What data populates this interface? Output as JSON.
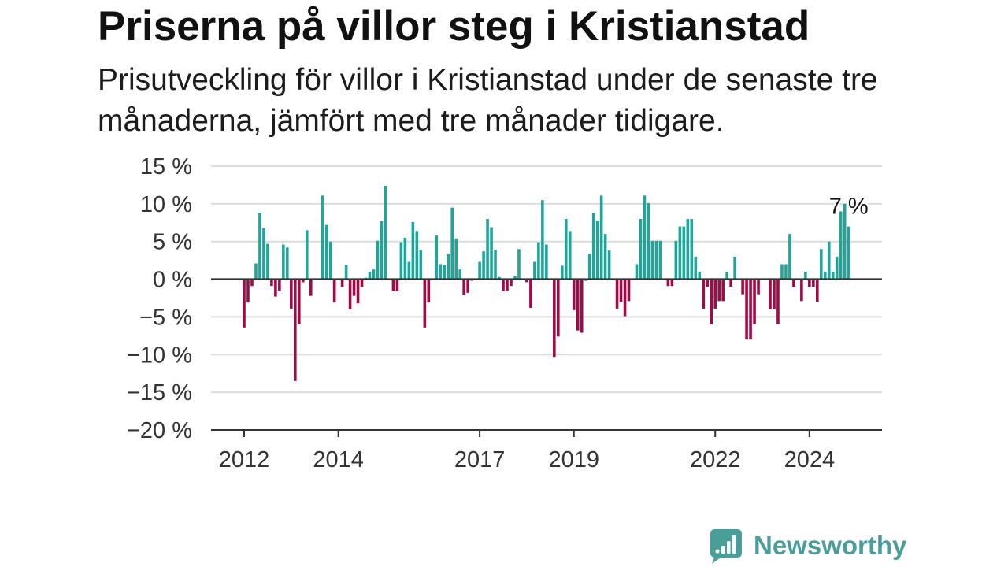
{
  "chart_data": {
    "type": "bar",
    "title": "Priserna på villor steg i Kristianstad",
    "subtitle": "Prisutveckling för villor i Kristianstad under de senaste tre månaderna, jämfört med tre månader tidigare.",
    "ylim": [
      -20,
      15
    ],
    "grid": true,
    "y_ticks": [
      {
        "value": 15,
        "label": "15 %"
      },
      {
        "value": 10,
        "label": "10 %"
      },
      {
        "value": 5,
        "label": "5 %"
      },
      {
        "value": 0,
        "label": "0 %"
      },
      {
        "value": -5,
        "label": "−5 %"
      },
      {
        "value": -10,
        "label": "−10 %"
      },
      {
        "value": -15,
        "label": "−15 %"
      },
      {
        "value": -20,
        "label": "−20 %"
      }
    ],
    "x_ticks": [
      "2012",
      "2014",
      "2017",
      "2019",
      "2022",
      "2024"
    ],
    "x": [
      "2012-01",
      "2012-02",
      "2012-03",
      "2012-04",
      "2012-05",
      "2012-06",
      "2012-07",
      "2012-08",
      "2012-09",
      "2012-10",
      "2012-11",
      "2012-12",
      "2013-01",
      "2013-02",
      "2013-03",
      "2013-04",
      "2013-05",
      "2013-06",
      "2013-07",
      "2013-08",
      "2013-09",
      "2013-10",
      "2013-11",
      "2013-12",
      "2014-01",
      "2014-02",
      "2014-03",
      "2014-04",
      "2014-05",
      "2014-06",
      "2014-07",
      "2014-08",
      "2014-09",
      "2014-10",
      "2014-11",
      "2014-12",
      "2015-01",
      "2015-02",
      "2015-03",
      "2015-04",
      "2015-05",
      "2015-06",
      "2015-07",
      "2015-08",
      "2015-09",
      "2015-10",
      "2015-11",
      "2015-12",
      "2016-01",
      "2016-02",
      "2016-03",
      "2016-04",
      "2016-05",
      "2016-06",
      "2016-07",
      "2016-08",
      "2016-09",
      "2016-10",
      "2016-11",
      "2016-12",
      "2017-01",
      "2017-02",
      "2017-03",
      "2017-04",
      "2017-05",
      "2017-06",
      "2017-07",
      "2017-08",
      "2017-09",
      "2017-10",
      "2017-11",
      "2017-12",
      "2018-01",
      "2018-02",
      "2018-03",
      "2018-04",
      "2018-05",
      "2018-06",
      "2018-07",
      "2018-08",
      "2018-09",
      "2018-10",
      "2018-11",
      "2018-12",
      "2019-01",
      "2019-02",
      "2019-03",
      "2019-04",
      "2019-05",
      "2019-06",
      "2019-07",
      "2019-08",
      "2019-09",
      "2019-10",
      "2019-11",
      "2019-12",
      "2020-01",
      "2020-02",
      "2020-03",
      "2020-04",
      "2020-05",
      "2020-06",
      "2020-07",
      "2020-08",
      "2020-09",
      "2020-10",
      "2020-11",
      "2020-12",
      "2021-01",
      "2021-02",
      "2021-03",
      "2021-04",
      "2021-05",
      "2021-06",
      "2021-07",
      "2021-08",
      "2021-09",
      "2021-10",
      "2021-11",
      "2021-12",
      "2022-01",
      "2022-02",
      "2022-03",
      "2022-04",
      "2022-05",
      "2022-06",
      "2022-07",
      "2022-08",
      "2022-09",
      "2022-10",
      "2022-11",
      "2022-12",
      "2023-01",
      "2023-02",
      "2023-03",
      "2023-04",
      "2023-05",
      "2023-06",
      "2023-07",
      "2023-08",
      "2023-09",
      "2023-10",
      "2023-11",
      "2023-12",
      "2024-01",
      "2024-02",
      "2024-03",
      "2024-04",
      "2024-05",
      "2024-06",
      "2024-07",
      "2024-08",
      "2024-09",
      "2024-10",
      "2024-11"
    ],
    "values": [
      -6.4,
      -3.1,
      -0.9,
      2.1,
      8.8,
      6.8,
      4.7,
      -0.9,
      -2.3,
      -1.5,
      4.6,
      4.2,
      -3.9,
      -13.5,
      -6.0,
      -0.4,
      6.5,
      -2.2,
      0,
      0,
      11.1,
      7.2,
      5.0,
      -3.1,
      0,
      -1.0,
      1.9,
      -4.0,
      -2.2,
      -3.2,
      -1.0,
      0.2,
      1.0,
      1.3,
      5.1,
      7.7,
      12.4,
      0,
      -1.6,
      -1.6,
      4.9,
      5.5,
      2.3,
      7.6,
      6.4,
      3.9,
      -6.4,
      -3.1,
      0,
      5.8,
      2.0,
      1.9,
      3.4,
      9.5,
      5.4,
      1.3,
      -2.1,
      -1.8,
      -0.2,
      0,
      2.3,
      3.7,
      8.0,
      6.9,
      3.9,
      0.3,
      -1.6,
      -1.5,
      -0.9,
      0.4,
      4.0,
      0,
      -0.4,
      -3.8,
      2.3,
      4.9,
      10.5,
      4.6,
      0,
      -10.3,
      -7.6,
      1.8,
      8.0,
      6.4,
      -4.1,
      -6.8,
      -7.1,
      -0.2,
      3.4,
      8.8,
      7.8,
      11.1,
      6.0,
      3.8,
      0,
      -3.9,
      -3.0,
      -4.9,
      -2.9,
      0,
      2.0,
      8.0,
      11.1,
      10.1,
      5.1,
      5.1,
      5.1,
      0,
      -0.9,
      -0.9,
      5.1,
      7.0,
      7.0,
      8.0,
      8.0,
      3.0,
      1.0,
      -3.9,
      -1.0,
      -6.0,
      -3.9,
      -2.9,
      -2.9,
      1.0,
      -1.0,
      3.0,
      0,
      -2.0,
      -8.0,
      -8.0,
      -6.0,
      -2.0,
      0,
      0,
      -4.0,
      -4.0,
      -6.0,
      2.0,
      2.0,
      6.0,
      -1.0,
      0,
      -2.9,
      1.0,
      -1.0,
      -1.0,
      -3.0,
      4.0,
      1.0,
      5.0,
      1.0,
      3.0,
      9.0,
      10.0,
      7.0
    ],
    "annotations": [
      {
        "x": "2024-11",
        "label": "7 %"
      }
    ],
    "colors": {
      "positive": "#1fa69b",
      "negative": "#a20a45",
      "zero_line": "#333333",
      "grid": "#dcdcdc"
    }
  },
  "branding": {
    "logo_text": "Newsworthy",
    "logo_icon": "newsworthy-logo-icon",
    "color": "#4a9e9a"
  }
}
